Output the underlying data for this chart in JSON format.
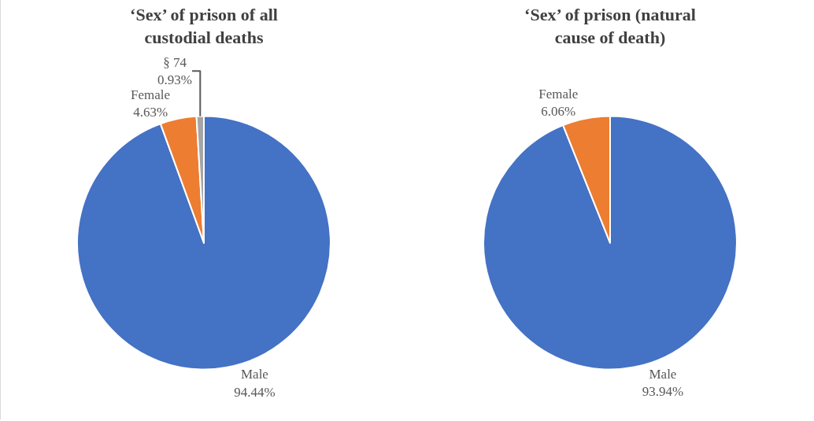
{
  "chart_data": [
    {
      "type": "pie",
      "title": "‘Sex’ of prison of all custodial deaths",
      "categories": [
        "Male",
        "Female",
        "§ 74"
      ],
      "values": [
        94.44,
        4.63,
        0.93
      ],
      "colors": [
        "#4472c4",
        "#ed7d31",
        "#a5a5a5"
      ],
      "value_labels": [
        "94.44%",
        "4.63%",
        "0.93%"
      ],
      "legend": false
    },
    {
      "type": "pie",
      "title": "‘Sex’ of prison (natural cause of death)",
      "categories": [
        "Male",
        "Female"
      ],
      "values": [
        93.94,
        6.06
      ],
      "colors": [
        "#4472c4",
        "#ed7d31"
      ],
      "value_labels": [
        "93.94%",
        "6.06%"
      ],
      "legend": false
    }
  ]
}
